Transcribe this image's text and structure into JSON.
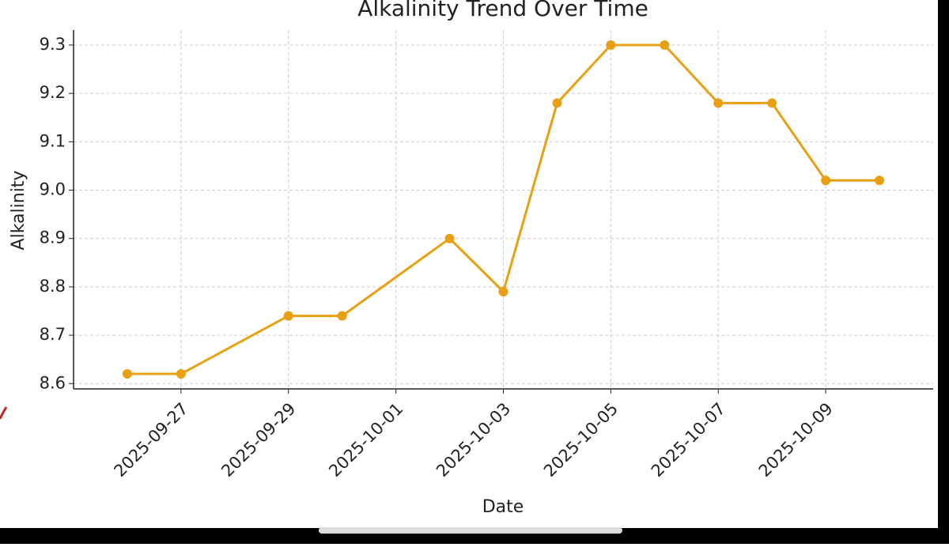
{
  "chart_data": {
    "type": "line",
    "title": "Alkalinity Trend Over Time",
    "xlabel": "Date",
    "ylabel": "Alkalinity",
    "x": [
      "2025-09-26",
      "2025-09-27",
      "2025-09-29",
      "2025-09-30",
      "2025-10-02",
      "2025-10-03",
      "2025-10-04",
      "2025-10-05",
      "2025-10-06",
      "2025-10-07",
      "2025-10-08",
      "2025-10-09",
      "2025-10-10"
    ],
    "series": [
      {
        "name": "Alkalinity",
        "color": "#e8a010",
        "values": [
          8.62,
          8.62,
          8.74,
          8.74,
          8.9,
          8.79,
          9.18,
          9.3,
          9.3,
          9.18,
          9.18,
          9.02,
          9.02
        ]
      }
    ],
    "xlim": [
      "2025-09-25",
      "2025-10-11"
    ],
    "xticks": [
      "2025-09-27",
      "2025-09-29",
      "2025-10-01",
      "2025-10-03",
      "2025-10-05",
      "2025-10-07",
      "2025-10-09"
    ],
    "ylim": [
      8.589,
      9.331
    ],
    "yticks": [
      8.6,
      8.7,
      8.8,
      8.9,
      {
        "value": 9,
        "label": "9.0"
      },
      9.1,
      9.2,
      9.3
    ],
    "grid": true
  }
}
